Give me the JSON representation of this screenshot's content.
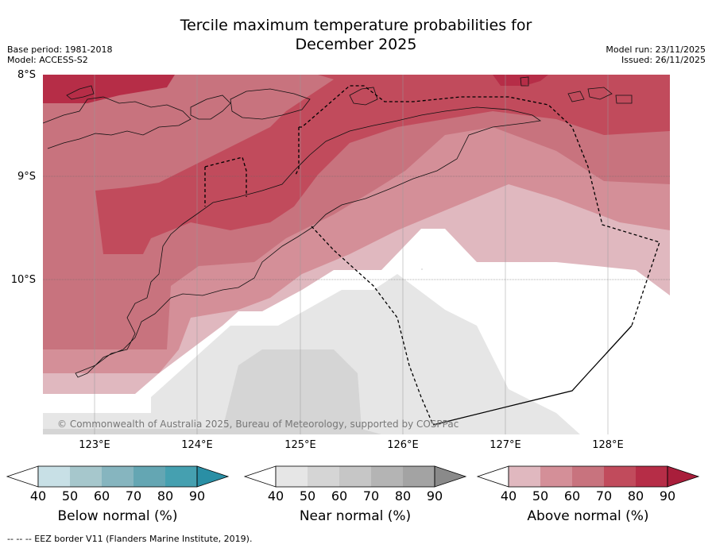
{
  "title_line1": "Tercile maximum temperature probabilities for",
  "title_line2": "December 2025",
  "meta_left": {
    "base_period": "Base period: 1981-2018",
    "model": "Model: ACCESS-S2"
  },
  "meta_right": {
    "model_run": "Model run: 23/11/2025",
    "issued": "Issued: 26/11/2025"
  },
  "lat_labels": [
    "8°S",
    "9°S",
    "10°S"
  ],
  "lon_labels": [
    "123°E",
    "124°E",
    "125°E",
    "126°E",
    "127°E",
    "128°E"
  ],
  "copyright": "© Commonwealth of Australia 2025, Bureau of Meteorology, supported by COSPPac",
  "colorbars": [
    {
      "label": "Below normal (%)",
      "ticks": [
        "40",
        "50",
        "60",
        "70",
        "80",
        "90"
      ],
      "colors": [
        "#c8e0e6",
        "#a6c7cc",
        "#86b5bf",
        "#64a6b3",
        "#45a0b0",
        "#2a8fa5"
      ]
    },
    {
      "label": "Near normal (%)",
      "ticks": [
        "40",
        "50",
        "60",
        "70",
        "80",
        "90"
      ],
      "colors": [
        "#e6e6e6",
        "#d5d5d5",
        "#c6c6c6",
        "#b4b4b4",
        "#a3a3a3",
        "#8a8a8a"
      ]
    },
    {
      "label": "Above normal (%)",
      "ticks": [
        "40",
        "50",
        "60",
        "70",
        "80",
        "90"
      ],
      "colors": [
        "#e0b8bf",
        "#d48f98",
        "#c8737e",
        "#c14b5c",
        "#b62d47",
        "#a91e3b"
      ]
    }
  ],
  "footnote": "--  --  -- EEZ border V11 (Flanders Marine Institute, 2019)."
}
